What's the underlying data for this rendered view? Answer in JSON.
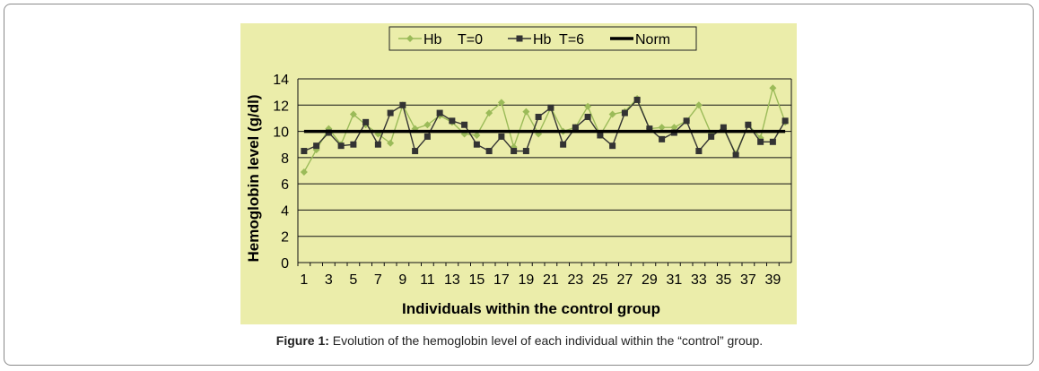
{
  "caption": {
    "label": "Figure 1:",
    "text": " Evolution of the hemoglobin level of each individual within the “control” group."
  },
  "chart_data": {
    "type": "line",
    "xlabel": "Individuals within the control group",
    "ylabel": "Hemoglobin level (g/dl)",
    "ylim": [
      0,
      14
    ],
    "yticks": [
      0,
      2,
      4,
      6,
      8,
      10,
      12,
      14
    ],
    "xticks": [
      1,
      3,
      5,
      7,
      9,
      11,
      13,
      15,
      17,
      19,
      21,
      23,
      25,
      27,
      29,
      31,
      33,
      35,
      37,
      39
    ],
    "grid": true,
    "legend_position": "top",
    "x": [
      1,
      2,
      3,
      4,
      5,
      6,
      7,
      8,
      9,
      10,
      11,
      12,
      13,
      14,
      15,
      16,
      17,
      18,
      19,
      20,
      21,
      22,
      23,
      24,
      25,
      26,
      27,
      28,
      29,
      30,
      31,
      32,
      33,
      34,
      35,
      36,
      37,
      38,
      39,
      40
    ],
    "series": [
      {
        "name": "Hb    T=0",
        "marker": "diamond",
        "color": "#9bbb59",
        "values": [
          6.9,
          8.6,
          10.2,
          9.0,
          11.3,
          10.5,
          9.8,
          9.1,
          12.0,
          10.2,
          10.5,
          11.2,
          10.7,
          9.8,
          9.7,
          11.4,
          12.2,
          8.8,
          11.5,
          9.8,
          11.8,
          10.0,
          10.3,
          11.9,
          9.7,
          11.3,
          11.5,
          12.5,
          10.2,
          10.3,
          10.3,
          10.8,
          12.0,
          9.8,
          10.2,
          8.3,
          10.5,
          9.5,
          13.3,
          10.7
        ]
      },
      {
        "name": "Hb  T=6",
        "marker": "square",
        "color": "#333333",
        "values": [
          8.5,
          8.9,
          9.9,
          8.9,
          9.0,
          10.7,
          9.0,
          11.4,
          12.0,
          8.5,
          9.6,
          11.4,
          10.8,
          10.5,
          9.0,
          8.5,
          9.6,
          8.5,
          8.5,
          11.1,
          11.8,
          9.0,
          10.3,
          11.1,
          9.7,
          8.9,
          11.4,
          12.4,
          10.2,
          9.4,
          9.9,
          10.8,
          8.5,
          9.6,
          10.3,
          8.2,
          10.5,
          9.2,
          9.2,
          10.8
        ]
      },
      {
        "name": "Norm",
        "marker": "none",
        "color": "#000000",
        "values": [
          10,
          10,
          10,
          10,
          10,
          10,
          10,
          10,
          10,
          10,
          10,
          10,
          10,
          10,
          10,
          10,
          10,
          10,
          10,
          10,
          10,
          10,
          10,
          10,
          10,
          10,
          10,
          10,
          10,
          10,
          10,
          10,
          10,
          10,
          10,
          10,
          10,
          10,
          10,
          10
        ]
      }
    ]
  }
}
